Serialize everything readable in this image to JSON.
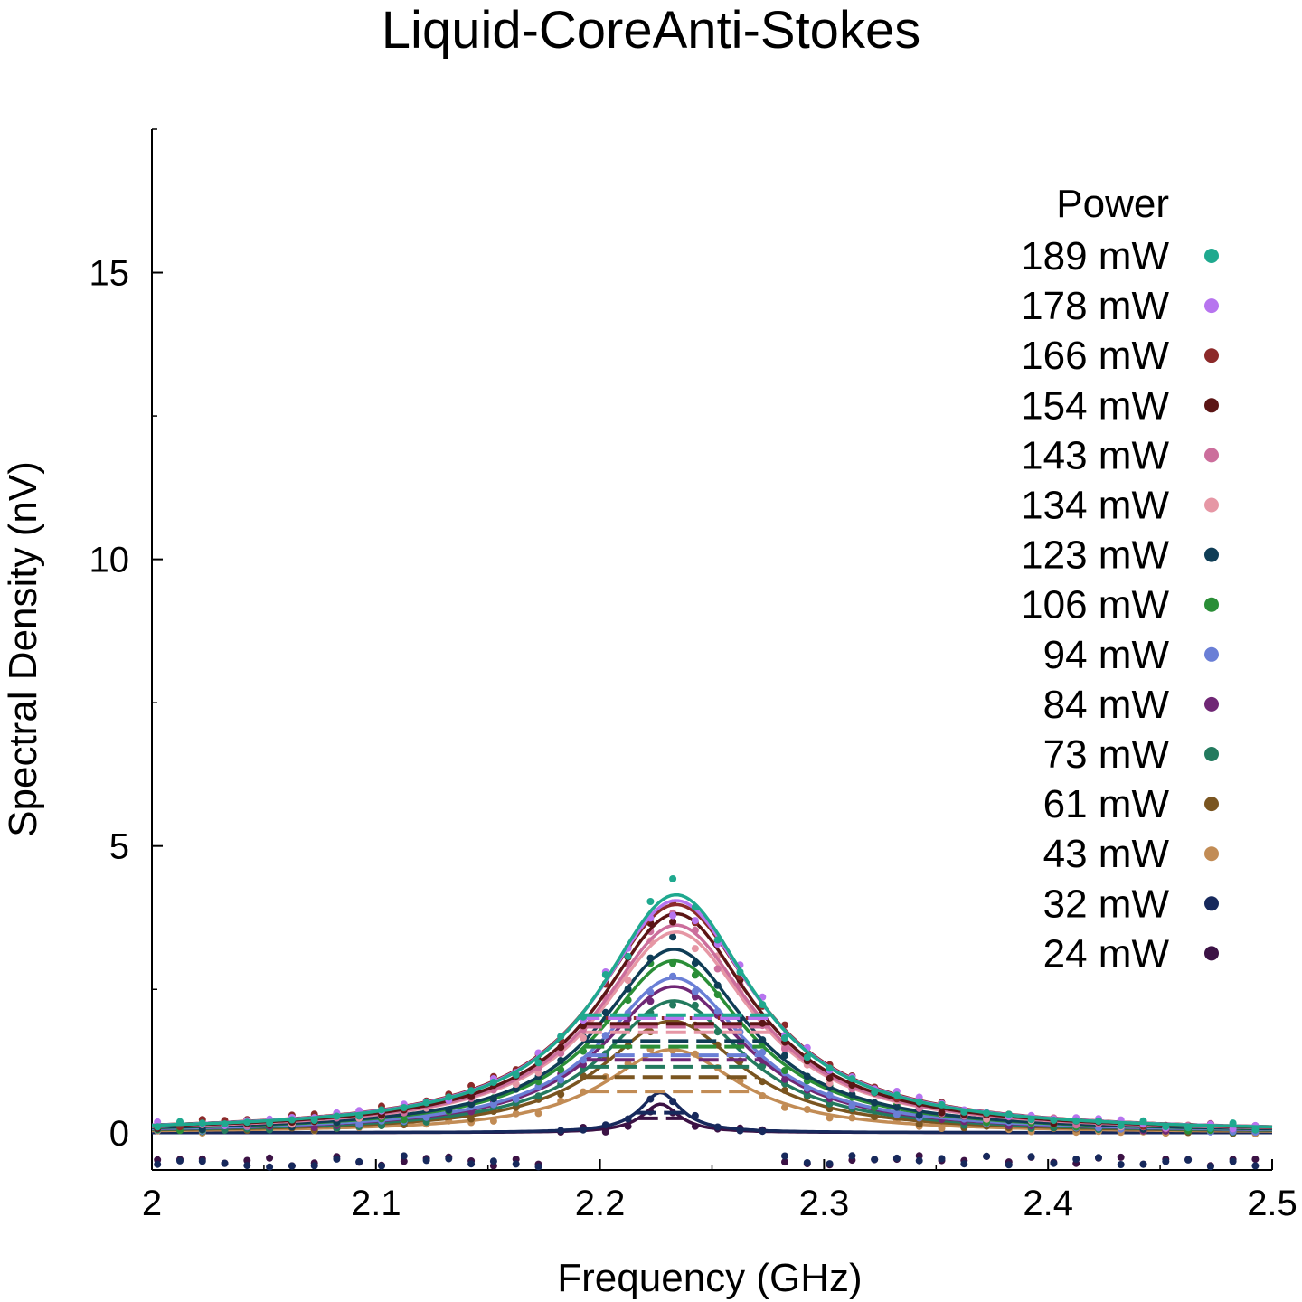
{
  "chart_data": {
    "type": "line",
    "title": "Liquid-CoreAnti-Stokes",
    "xlabel": "Frequency (GHz)",
    "ylabel": "Spectral Density (nV)",
    "xlim": [
      2.0,
      2.5
    ],
    "ylim": [
      -0.65,
      17.5
    ],
    "x_ticks": [
      "2",
      "2.1",
      "2.2",
      "2.3",
      "2.4",
      "2.5"
    ],
    "y_ticks": [
      "0",
      "5",
      "10",
      "15"
    ],
    "grid": false,
    "legend_title": "Power",
    "legend_position": "top-right",
    "marker": "dots",
    "series": [
      {
        "name": "189 mW",
        "color": "#1fa98f",
        "center": 2.234,
        "width": 0.042,
        "peak": 4.15,
        "dash_level": 2.05
      },
      {
        "name": "178 mW",
        "color": "#b774ef",
        "center": 2.234,
        "width": 0.043,
        "peak": 4.05,
        "dash_level": 2.0
      },
      {
        "name": "166 mW",
        "color": "#8c2a2a",
        "center": 2.234,
        "width": 0.044,
        "peak": 3.98,
        "dash_level": 2.0
      },
      {
        "name": "154 mW",
        "color": "#5b1515",
        "center": 2.234,
        "width": 0.042,
        "peak": 3.82,
        "dash_level": 1.9
      },
      {
        "name": "143 mW",
        "color": "#cc6e9c",
        "center": 2.234,
        "width": 0.042,
        "peak": 3.62,
        "dash_level": 1.85
      },
      {
        "name": "134 mW",
        "color": "#e697a5",
        "center": 2.234,
        "width": 0.042,
        "peak": 3.5,
        "dash_level": 1.75
      },
      {
        "name": "123 mW",
        "color": "#0f3d56",
        "center": 2.233,
        "width": 0.04,
        "peak": 3.2,
        "dash_level": 1.6
      },
      {
        "name": "106 mW",
        "color": "#2a8e37",
        "center": 2.233,
        "width": 0.04,
        "peak": 3.0,
        "dash_level": 1.5
      },
      {
        "name": "94 mW",
        "color": "#6a7fd6",
        "center": 2.233,
        "width": 0.039,
        "peak": 2.7,
        "dash_level": 1.35
      },
      {
        "name": "84 mW",
        "color": "#702775",
        "center": 2.233,
        "width": 0.039,
        "peak": 2.55,
        "dash_level": 1.27
      },
      {
        "name": "73 mW",
        "color": "#237a5e",
        "center": 2.233,
        "width": 0.038,
        "peak": 2.3,
        "dash_level": 1.15
      },
      {
        "name": "61 mW",
        "color": "#7a5520",
        "center": 2.232,
        "width": 0.038,
        "peak": 1.95,
        "dash_level": 0.97
      },
      {
        "name": "43 mW",
        "color": "#c28c55",
        "center": 2.232,
        "width": 0.037,
        "peak": 1.45,
        "dash_level": 0.72
      },
      {
        "name": "32 mW",
        "color": "#17295c",
        "center": 2.227,
        "width": 0.011,
        "peak": 0.7,
        "dash_level": 0.35
      },
      {
        "name": "24 mW",
        "color": "#3c1245",
        "center": 2.227,
        "width": 0.01,
        "peak": 0.5,
        "dash_level": 0.25
      }
    ]
  }
}
